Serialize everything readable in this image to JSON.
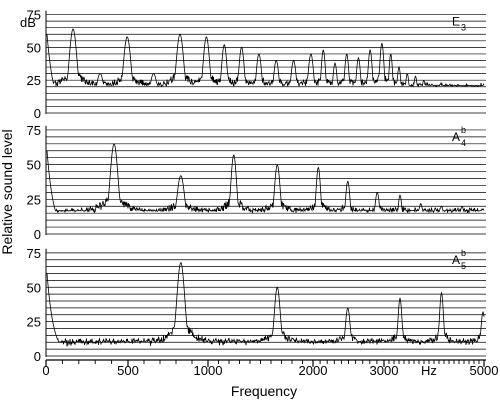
{
  "figure": {
    "ylabel": "Relative sound level",
    "xlabel": "Frequency",
    "y_unit": "dB",
    "x_unit": "Hz",
    "x_tick_labels": [
      "0",
      "500",
      "1000",
      "2000",
      "3000",
      "5000"
    ]
  },
  "chart_data": [
    {
      "type": "line",
      "title": "",
      "note": {
        "letter": "E",
        "sup": "",
        "sub": "3"
      },
      "xlabel": "Frequency",
      "ylabel": "Relative sound level",
      "y_unit": "dB",
      "xlim": [
        0,
        5000
      ],
      "ylim": [
        0,
        80
      ],
      "y_ticks": [
        0,
        25,
        50,
        75
      ],
      "x_scale": "compressed above 1000 Hz (0-1000 linear, 1000-3000 linear at lower density, 3000-5000 compressed)",
      "grid": "horizontal lines every 5 dB",
      "fundamental_hz": 165,
      "noise_floor_db": 18,
      "series": [
        {
          "name": "",
          "peaks": [
            {
              "x": 165,
              "y": 64
            },
            {
              "x": 330,
              "y": 30
            },
            {
              "x": 495,
              "y": 58
            },
            {
              "x": 660,
              "y": 30
            },
            {
              "x": 825,
              "y": 60
            },
            {
              "x": 990,
              "y": 58
            },
            {
              "x": 1155,
              "y": 52
            },
            {
              "x": 1320,
              "y": 50
            },
            {
              "x": 1485,
              "y": 45
            },
            {
              "x": 1650,
              "y": 40
            },
            {
              "x": 1815,
              "y": 40
            },
            {
              "x": 1980,
              "y": 45
            },
            {
              "x": 2145,
              "y": 48
            },
            {
              "x": 2310,
              "y": 38
            },
            {
              "x": 2475,
              "y": 45
            },
            {
              "x": 2640,
              "y": 42
            },
            {
              "x": 2805,
              "y": 48
            },
            {
              "x": 2970,
              "y": 53
            },
            {
              "x": 3135,
              "y": 45
            },
            {
              "x": 3300,
              "y": 35
            },
            {
              "x": 3465,
              "y": 30
            },
            {
              "x": 3630,
              "y": 28
            },
            {
              "x": 3795,
              "y": 25
            },
            {
              "x": 3960,
              "y": 22
            },
            {
              "x": 4125,
              "y": 22
            },
            {
              "x": 4290,
              "y": 20
            },
            {
              "x": 4455,
              "y": 18
            },
            {
              "x": 4620,
              "y": 18
            },
            {
              "x": 4785,
              "y": 16
            }
          ]
        }
      ]
    },
    {
      "type": "line",
      "title": "",
      "note": {
        "letter": "A",
        "sup": "b",
        "sub": "4"
      },
      "xlabel": "Frequency",
      "ylabel": "Relative sound level",
      "y_unit": "dB",
      "xlim": [
        0,
        5000
      ],
      "ylim": [
        0,
        80
      ],
      "y_ticks": [
        0,
        25,
        50,
        75
      ],
      "x_scale": "compressed above 1000 Hz (0-1000 linear, 1000-3000 linear at lower density, 3000-5000 compressed)",
      "grid": "horizontal lines every 5 dB",
      "fundamental_hz": 415,
      "noise_floor_db": 14,
      "series": [
        {
          "name": "",
          "peaks": [
            {
              "x": 415,
              "y": 65
            },
            {
              "x": 830,
              "y": 42
            },
            {
              "x": 1245,
              "y": 57
            },
            {
              "x": 1660,
              "y": 50
            },
            {
              "x": 2075,
              "y": 48
            },
            {
              "x": 2490,
              "y": 38
            },
            {
              "x": 2905,
              "y": 30
            },
            {
              "x": 3320,
              "y": 28
            },
            {
              "x": 3735,
              "y": 22
            },
            {
              "x": 4150,
              "y": 20
            },
            {
              "x": 4565,
              "y": 20
            },
            {
              "x": 4980,
              "y": 18
            }
          ]
        }
      ]
    },
    {
      "type": "line",
      "title": "",
      "note": {
        "letter": "A",
        "sup": "b",
        "sub": "5"
      },
      "xlabel": "Frequency",
      "ylabel": "Relative sound level",
      "y_unit": "dB",
      "xlim": [
        0,
        5000
      ],
      "ylim": [
        0,
        80
      ],
      "y_ticks": [
        0,
        25,
        50,
        75
      ],
      "x_scale": "compressed above 1000 Hz (0-1000 linear, 1000-3000 linear at lower density, 3000-5000 compressed)",
      "grid": "horizontal lines every 5 dB",
      "fundamental_hz": 830,
      "noise_floor_db": 8,
      "series": [
        {
          "name": "",
          "peaks": [
            {
              "x": 830,
              "y": 68
            },
            {
              "x": 1660,
              "y": 50
            },
            {
              "x": 2490,
              "y": 35
            },
            {
              "x": 3320,
              "y": 42
            },
            {
              "x": 4150,
              "y": 46
            },
            {
              "x": 4980,
              "y": 32
            }
          ]
        }
      ]
    }
  ]
}
